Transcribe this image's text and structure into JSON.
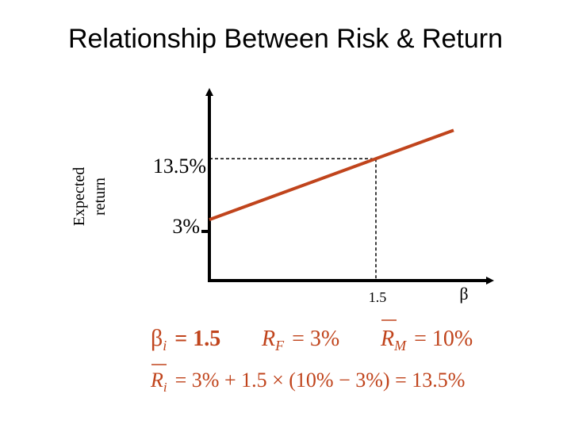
{
  "slide": {
    "title": "Relationship Between Risk & Return"
  },
  "chart_data": {
    "type": "line",
    "title": "Relationship Between Risk & Return",
    "ylabel": [
      "Expected",
      "return"
    ],
    "xlabel": "β",
    "x": [
      0,
      2.2
    ],
    "y": [
      3,
      18.4
    ],
    "points_labeled": [
      {
        "x": 0,
        "y": 3,
        "label": "3%"
      },
      {
        "x": 1.5,
        "y": 13.5,
        "label": "13.5%"
      }
    ],
    "x_marker": {
      "value": 1.5,
      "label": "1.5"
    },
    "line_color": "#C0441C",
    "xlim": [
      0,
      2.5
    ],
    "ylim": [
      -7.5,
      25
    ]
  },
  "formulas": {
    "line1": {
      "beta_sym": "β",
      "beta_sub": "i",
      "beta_val": "= 1.5",
      "rf_sym": "R",
      "rf_sub": "F",
      "rf_val": "= 3%",
      "rm_sym": "R",
      "rm_sub": "M",
      "rm_val": "= 10%"
    },
    "line2": {
      "ri_sym": "R",
      "ri_sub": "i",
      "expression": "= 3% + 1.5 × (10% − 3%) = 13.5%"
    },
    "color": "#C0441C"
  }
}
